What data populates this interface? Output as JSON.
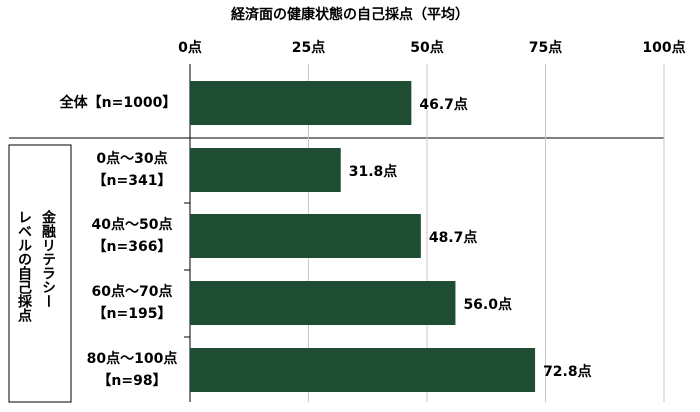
{
  "chart_data": {
    "type": "hbar",
    "title": "経済面の健康状態の自己採点（平均）",
    "categories": [
      [
        "全体【n=1000】"
      ],
      [
        "0点～30点",
        "【n=341】"
      ],
      [
        "40点～50点",
        "【n=366】"
      ],
      [
        "60点～70点",
        "【n=195】"
      ],
      [
        "80点～100点",
        "【n=98】"
      ]
    ],
    "values": [
      46.7,
      31.8,
      48.7,
      56.0,
      72.8
    ],
    "value_labels": [
      "46.7点",
      "31.8点",
      "48.7点",
      "56.0点",
      "72.8点"
    ],
    "color": "#1e4d33",
    "group_label": [
      "金融リテラシー",
      "レベルの自己採点"
    ],
    "xlim": [
      0,
      100
    ],
    "xticks": [
      {
        "value": 0,
        "label": "0点"
      },
      {
        "value": 25,
        "label": "25点"
      },
      {
        "value": 50,
        "label": "50点"
      },
      {
        "value": 75,
        "label": "75点"
      },
      {
        "value": 100,
        "label": "100点"
      }
    ],
    "grid": true
  }
}
